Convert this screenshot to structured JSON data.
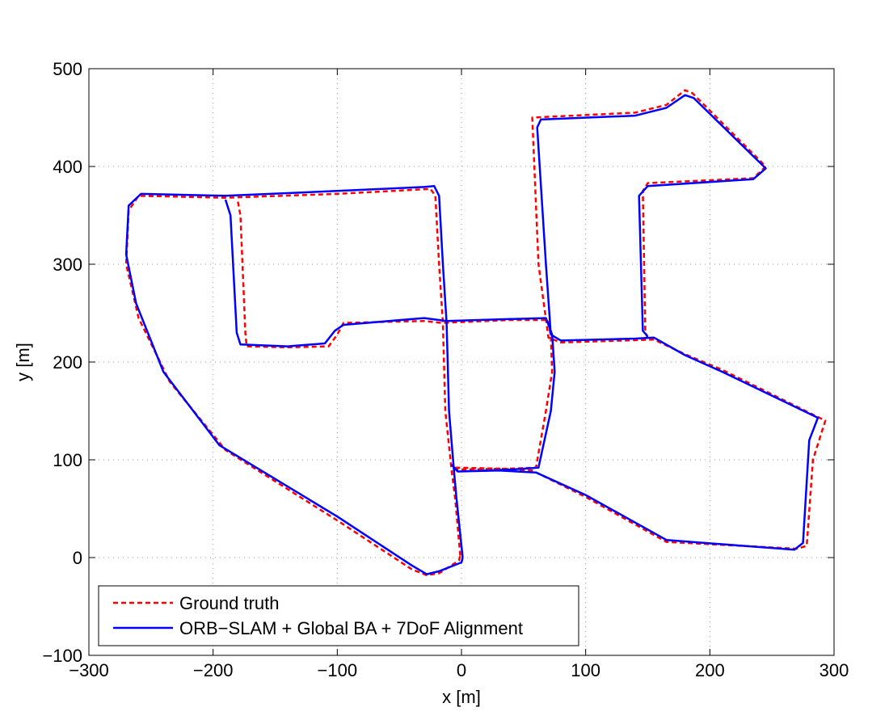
{
  "chart_data": {
    "type": "line",
    "xlabel": "x [m]",
    "ylabel": "y [m]",
    "xlim": [
      -300,
      300
    ],
    "ylim": [
      -100,
      500
    ],
    "xticks": [
      {
        "value": -300,
        "label": "−300"
      },
      {
        "value": -200,
        "label": "−200"
      },
      {
        "value": -100,
        "label": "−100"
      },
      0,
      100,
      200,
      300
    ],
    "yticks": [
      {
        "value": -100,
        "label": "−100"
      },
      0,
      100,
      200,
      300,
      400,
      500
    ],
    "grid": true,
    "legend": "lower left",
    "series": [
      {
        "name": "Ground truth",
        "color": "#ff0000",
        "dash": true,
        "x": [
          -1,
          -5,
          -8,
          -13,
          -15,
          -18,
          -21,
          -25,
          -100,
          -190,
          -260,
          -268,
          -270,
          -260,
          -235,
          -190,
          -100,
          -40,
          -28,
          -18,
          -2,
          -1,
          null,
          -180,
          -178,
          -174,
          -173,
          -140,
          -107,
          -100,
          -95,
          -30,
          -16,
          40,
          70,
          72,
          73,
          68,
          60,
          40,
          -8,
          null,
          -5,
          30,
          57,
          100,
          165,
          270,
          278,
          283,
          293,
          210,
          180,
          155,
          80,
          70,
          62,
          57,
          140,
          165,
          180,
          186,
          245,
          235,
          150,
          146,
          148,
          150
        ],
        "values": [
          2,
          60,
          90,
          150,
          240,
          300,
          370,
          377,
          372,
          368,
          370,
          355,
          300,
          245,
          180,
          110,
          38,
          -12,
          -18,
          -16,
          -3,
          2,
          null,
          364,
          350,
          230,
          216,
          215,
          216,
          228,
          240,
          242,
          240,
          243,
          243,
          225,
          190,
          150,
          92,
          91,
          90,
          null,
          92,
          91,
          89,
          62,
          16,
          9,
          12,
          100,
          140,
          192,
          208,
          223,
          220,
          225,
          300,
          450,
          455,
          463,
          478,
          475,
          400,
          388,
          383,
          375,
          232,
          224
        ]
      },
      {
        "name": "ORB−SLAM + Global BA + 7DoF Alignment",
        "color": "#0000ff",
        "dash": false,
        "x": [
          1,
          -4,
          -6,
          -10,
          -12,
          -15,
          -18,
          -22,
          -30,
          -100,
          -190,
          -258,
          -268,
          -270,
          -262,
          -240,
          -195,
          -100,
          -40,
          -28,
          -18,
          0,
          1,
          null,
          -190,
          -186,
          -181,
          -178,
          -140,
          -110,
          -102,
          -95,
          -30,
          -12,
          40,
          68,
          73,
          75,
          72,
          62,
          40,
          -3,
          -8,
          null,
          -3,
          30,
          60,
          100,
          165,
          268,
          275,
          280,
          287,
          210,
          180,
          155,
          140,
          80,
          72,
          68,
          61,
          64,
          140,
          165,
          180,
          187,
          245,
          235,
          150,
          143,
          146,
          150
        ],
        "values": [
          0,
          60,
          88,
          150,
          240,
          300,
          370,
          380,
          379,
          375,
          370,
          372,
          360,
          310,
          260,
          190,
          115,
          42,
          -8,
          -17,
          -14,
          -5,
          0,
          null,
          366,
          350,
          230,
          218,
          216,
          219,
          232,
          238,
          245,
          242,
          244,
          245,
          228,
          190,
          150,
          92,
          90,
          88,
          95,
          null,
          88,
          89,
          87,
          64,
          18,
          8,
          15,
          120,
          143,
          190,
          207,
          225,
          224,
          222,
          228,
          300,
          440,
          448,
          452,
          460,
          473,
          470,
          398,
          387,
          380,
          370,
          232,
          226
        ]
      }
    ]
  }
}
